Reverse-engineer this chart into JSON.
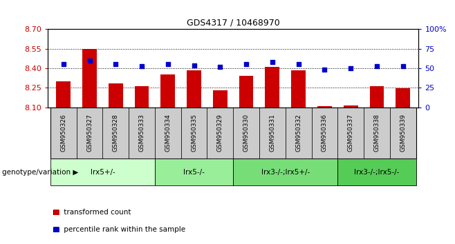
{
  "title": "GDS4317 / 10468970",
  "samples": [
    "GSM950326",
    "GSM950327",
    "GSM950328",
    "GSM950333",
    "GSM950334",
    "GSM950335",
    "GSM950329",
    "GSM950330",
    "GSM950331",
    "GSM950332",
    "GSM950336",
    "GSM950337",
    "GSM950338",
    "GSM950339"
  ],
  "bar_values": [
    8.3,
    8.55,
    8.285,
    8.265,
    8.355,
    8.385,
    8.23,
    8.345,
    8.41,
    8.385,
    8.11,
    8.115,
    8.265,
    8.245
  ],
  "percentile_values": [
    55,
    60,
    55,
    53,
    55,
    54,
    52,
    55,
    58,
    55,
    48,
    50,
    53,
    53
  ],
  "ymin": 8.1,
  "ymax": 8.7,
  "yticks": [
    8.1,
    8.25,
    8.4,
    8.55,
    8.7
  ],
  "y2min": 0,
  "y2max": 100,
  "y2ticks": [
    0,
    25,
    50,
    75,
    100
  ],
  "bar_color": "#cc0000",
  "dot_color": "#0000cc",
  "groups": [
    {
      "label": "lrx5+/-",
      "start": 0,
      "end": 4,
      "color": "#ccffcc"
    },
    {
      "label": "lrx5-/-",
      "start": 4,
      "end": 7,
      "color": "#99ee99"
    },
    {
      "label": "lrx3-/-;lrx5+/-",
      "start": 7,
      "end": 11,
      "color": "#77dd77"
    },
    {
      "label": "lrx3-/-;lrx5-/-",
      "start": 11,
      "end": 14,
      "color": "#55cc55"
    }
  ],
  "sample_box_color": "#cccccc",
  "group_label_prefix": "genotype/variation",
  "legend_bar_label": "transformed count",
  "legend_dot_label": "percentile rank within the sample",
  "bg_color": "#ffffff",
  "plot_bg_color": "#ffffff",
  "tick_label_color_left": "#cc0000",
  "tick_label_color_right": "#0000cc"
}
